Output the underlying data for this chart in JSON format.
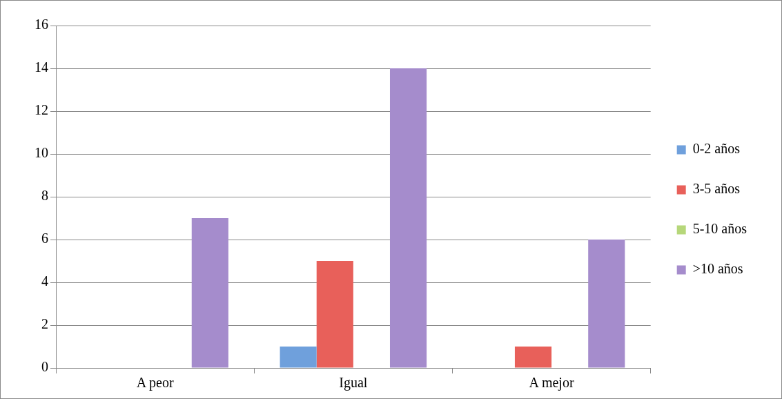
{
  "chart_data": {
    "type": "bar",
    "categories": [
      "A peor",
      "Igual",
      "A mejor"
    ],
    "series": [
      {
        "name": "0-2 años",
        "color": "#6fa0dc",
        "values": [
          0,
          1,
          0
        ]
      },
      {
        "name": "3-5 años",
        "color": "#e8605a",
        "values": [
          0,
          5,
          1
        ]
      },
      {
        "name": "5-10 años",
        "color": "#b6d77a",
        "values": [
          0,
          0,
          0
        ]
      },
      {
        "name": ">10 años",
        "color": "#a58ccc",
        "values": [
          7,
          14,
          6
        ]
      }
    ],
    "ylim": [
      0,
      16
    ],
    "yticks": [
      0,
      2,
      4,
      6,
      8,
      10,
      12,
      14,
      16
    ],
    "grid": "y",
    "legend": "right"
  }
}
